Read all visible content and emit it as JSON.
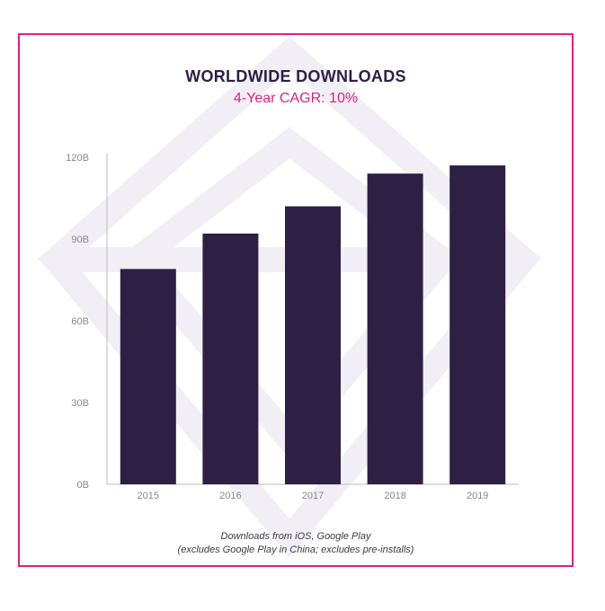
{
  "chart_data": {
    "type": "bar",
    "title": "WORLDWIDE DOWNLOADS",
    "subtitle": "4-Year CAGR: 10%",
    "categories": [
      "2015",
      "2016",
      "2017",
      "2018",
      "2019"
    ],
    "values": [
      79,
      92,
      102,
      114,
      117
    ],
    "ylim": [
      0,
      120
    ],
    "yticks": [
      {
        "value": 0,
        "label": "0B"
      },
      {
        "value": 30,
        "label": "30B"
      },
      {
        "value": 60,
        "label": "60B"
      },
      {
        "value": 90,
        "label": "90B"
      },
      {
        "value": 120,
        "label": "120B"
      }
    ],
    "xlabel": "",
    "ylabel": "",
    "grid": false,
    "bar_color": "#2e1f45"
  },
  "footnote": {
    "line1": "Downloads from iOS, Google Play",
    "line2": "(excludes Google Play in China; excludes pre-installs)"
  },
  "colors": {
    "accent": "#e0207e",
    "title": "#2e1f45",
    "axis_text": "#888888"
  }
}
